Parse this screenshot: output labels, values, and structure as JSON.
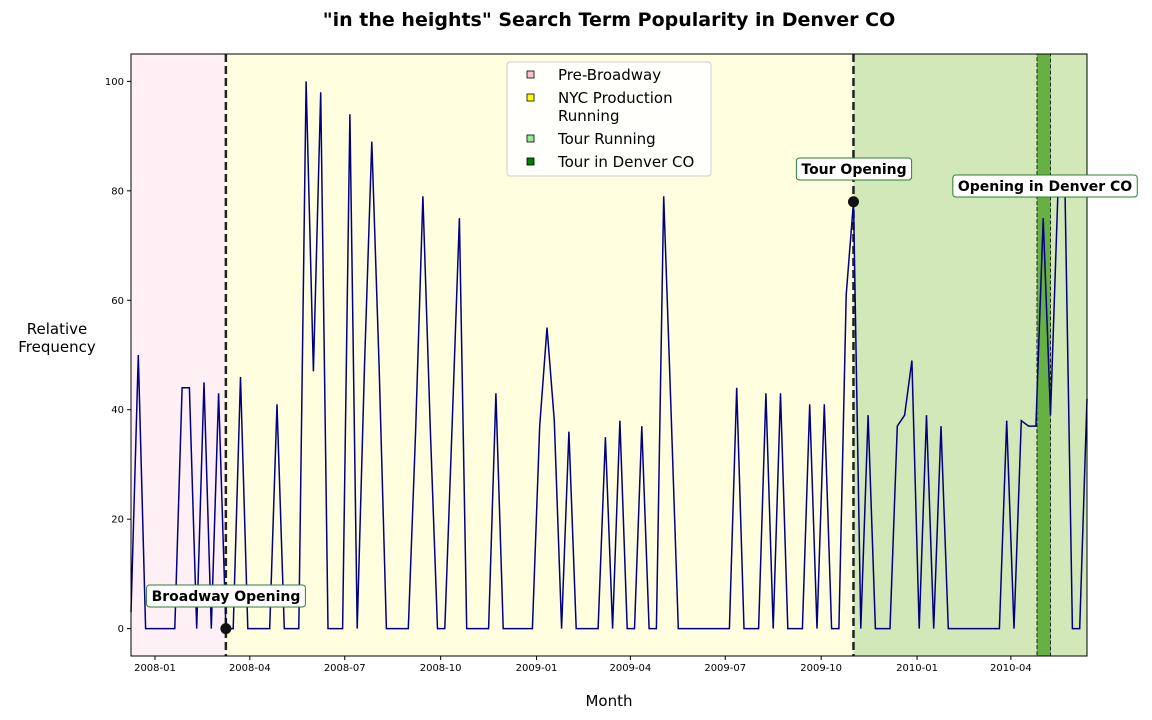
{
  "chart_data": {
    "type": "line",
    "title": "\"in the heights\" Search Term Popularity in Denver CO",
    "xlabel": "Month",
    "ylabel": "Relative\nFrequency",
    "x_start": "2007-12-09",
    "x_end": "2010-06-13",
    "ylim": [
      -5,
      105
    ],
    "grid": false,
    "y_ticks": [
      0,
      20,
      40,
      60,
      80,
      100
    ],
    "x_ticks": [
      {
        "date": "2008-01-01",
        "label": "2008-01"
      },
      {
        "date": "2008-04-01",
        "label": "2008-04"
      },
      {
        "date": "2008-07-01",
        "label": "2008-07"
      },
      {
        "date": "2008-10-01",
        "label": "2008-10"
      },
      {
        "date": "2009-01-01",
        "label": "2009-01"
      },
      {
        "date": "2009-04-01",
        "label": "2009-04"
      },
      {
        "date": "2009-07-01",
        "label": "2009-07"
      },
      {
        "date": "2009-10-01",
        "label": "2009-10"
      },
      {
        "date": "2010-01-01",
        "label": "2010-01"
      },
      {
        "date": "2010-04-01",
        "label": "2010-04"
      }
    ],
    "series": [
      {
        "color": "#000080",
        "x_weekly_start": "2007-12-09",
        "values": [
          3,
          50,
          0,
          0,
          0,
          0,
          0,
          44,
          44,
          0,
          45,
          0,
          43,
          0,
          0,
          46,
          0,
          0,
          0,
          0,
          41,
          0,
          0,
          0,
          100,
          47,
          98,
          0,
          0,
          0,
          94,
          0,
          48,
          89,
          48,
          0,
          0,
          0,
          0,
          36,
          79,
          37,
          0,
          0,
          37,
          75,
          0,
          0,
          0,
          0,
          43,
          0,
          0,
          0,
          0,
          0,
          37,
          55,
          38,
          0,
          36,
          0,
          0,
          0,
          0,
          35,
          0,
          38,
          0,
          0,
          37,
          0,
          0,
          79,
          40,
          0,
          0,
          0,
          0,
          0,
          0,
          0,
          0,
          44,
          0,
          0,
          0,
          43,
          0,
          43,
          0,
          0,
          0,
          41,
          0,
          41,
          0,
          0,
          61,
          78,
          0,
          39,
          0,
          0,
          0,
          37,
          39,
          49,
          0,
          39,
          0,
          37,
          0,
          0,
          0,
          0,
          0,
          0,
          0,
          0,
          38,
          0,
          38,
          37,
          37,
          75,
          39,
          79,
          79,
          0,
          0,
          42
        ]
      }
    ],
    "regions": [
      {
        "label": "Pre-Broadway",
        "start": "2007-12-09",
        "end": "2008-03-09",
        "color": "#fff0f5"
      },
      {
        "label": "NYC Production\nRunning",
        "start": "2008-03-09",
        "end": "2009-11-01",
        "color": "#ffffe0"
      },
      {
        "label": "Tour Running",
        "start": "2009-11-01",
        "end": "2010-06-13",
        "color": "#d2e8b8"
      },
      {
        "label": "Tour in Denver CO",
        "start": "2010-04-26",
        "end": "2010-05-09",
        "color": "#66b044"
      }
    ],
    "legend_position": "top-center",
    "annotations": [
      {
        "text": "Broadway Opening",
        "date": "2008-03-09",
        "value": 0
      },
      {
        "text": "Tour Opening",
        "date": "2009-11-01",
        "value": 78
      },
      {
        "text": "Opening in Denver CO",
        "date": "2010-05-09",
        "value": 78
      }
    ]
  }
}
